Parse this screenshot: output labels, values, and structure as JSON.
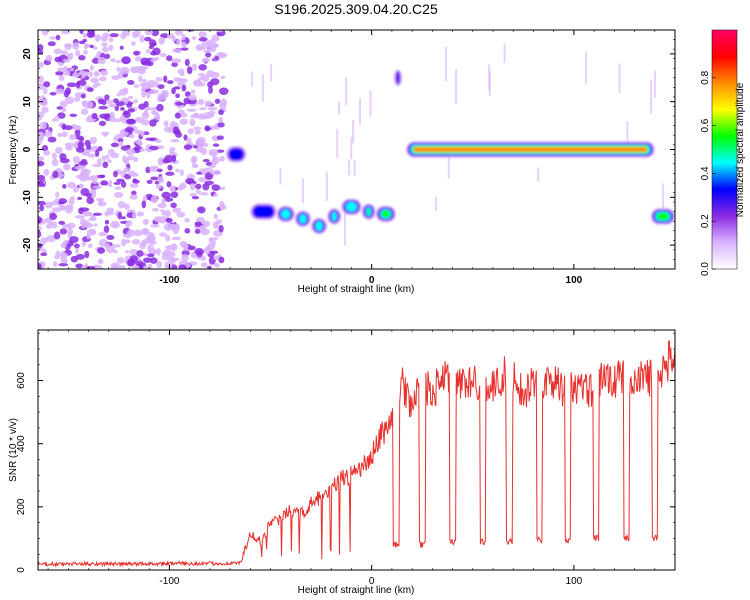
{
  "figure_title": "S196.2025.309.04.20.C25",
  "chart_data": [
    {
      "type": "heatmap",
      "title": "S196.2025.309.04.20.C25",
      "xlabel": "Height of straight line (km)",
      "ylabel": "Frequency (Hz)",
      "xlim": [
        -165,
        150
      ],
      "ylim": [
        -25,
        25
      ],
      "x_ticks": [
        -100,
        0,
        100
      ],
      "y_ticks": [
        -20,
        -10,
        0,
        10,
        20
      ],
      "colorbar": {
        "label": "Normalized spectral amplitude",
        "range": [
          0,
          1
        ],
        "ticks": [
          0.0,
          0.2,
          0.4,
          0.6,
          0.8
        ],
        "colors": [
          "#ffffff",
          "#d9b3ff",
          "#8a2be2",
          "#0000ff",
          "#00ffff",
          "#00ff00",
          "#ffff00",
          "#ff8c00",
          "#ff0000",
          "#ff0066"
        ]
      },
      "noise_region_x": [
        -165,
        -73
      ],
      "ridge_segments": [
        {
          "x": [
            -72,
            -62
          ],
          "freq": -1,
          "amplitude": 0.35
        },
        {
          "x": [
            -60,
            -47
          ],
          "freq": -13,
          "amplitude": 0.4
        },
        {
          "x": [
            -47,
            -38
          ],
          "freq": -13.5,
          "amplitude": 0.45
        },
        {
          "x": [
            -38,
            -30
          ],
          "freq": -14.5,
          "amplitude": 0.5
        },
        {
          "x": [
            -30,
            -22
          ],
          "freq": -16,
          "amplitude": 0.55
        },
        {
          "x": [
            -22,
            -15
          ],
          "freq": -14,
          "amplitude": 0.5
        },
        {
          "x": [
            -15,
            -5
          ],
          "freq": -12,
          "amplitude": 0.55
        },
        {
          "x": [
            -5,
            2
          ],
          "freq": -13,
          "amplitude": 0.6
        },
        {
          "x": [
            2,
            12
          ],
          "freq": -13.5,
          "amplitude": 0.65
        },
        {
          "x": [
            11,
            15
          ],
          "freq": 15,
          "amplitude": 0.35
        },
        {
          "x": [
            17,
            140
          ],
          "freq": 0,
          "amplitude": 0.85
        },
        {
          "x": [
            138,
            150
          ],
          "freq": -14,
          "amplitude": 0.7
        }
      ]
    },
    {
      "type": "line",
      "xlabel": "Height of straight line (km)",
      "ylabel": "SNR (10 * v/v)",
      "xlim": [
        -165,
        150
      ],
      "ylim": [
        0,
        760
      ],
      "x_ticks": [
        -100,
        0,
        100
      ],
      "y_ticks": [
        0,
        200,
        400,
        600
      ],
      "line_color": "#e8312e",
      "series": [
        {
          "name": "SNR",
          "x": [
            -165,
            -140,
            -120,
            -100,
            -80,
            -65,
            -60,
            -55,
            -50,
            -45,
            -40,
            -35,
            -30,
            -25,
            -20,
            -15,
            -10,
            -5,
            0,
            5,
            10,
            15,
            20,
            25,
            30,
            35,
            40,
            45,
            50,
            55,
            60,
            65,
            70,
            75,
            80,
            85,
            90,
            95,
            100,
            105,
            110,
            115,
            120,
            125,
            130,
            135,
            140,
            145,
            150
          ],
          "values": [
            18,
            20,
            19,
            21,
            20,
            22,
            110,
            90,
            150,
            160,
            190,
            175,
            210,
            230,
            250,
            290,
            300,
            320,
            360,
            430,
            480,
            590,
            520,
            590,
            560,
            610,
            580,
            600,
            590,
            600,
            570,
            620,
            620,
            560,
            600,
            590,
            600,
            570,
            580,
            570,
            570,
            620,
            600,
            610,
            580,
            620,
            600,
            640,
            700
          ]
        }
      ],
      "dropouts": [
        {
          "center": 12,
          "width": 3,
          "level": 80
        },
        {
          "center": 25,
          "width": 3,
          "level": 80
        },
        {
          "center": 40,
          "width": 3,
          "level": 90
        },
        {
          "center": 55,
          "width": 3,
          "level": 90
        },
        {
          "center": 68,
          "width": 3,
          "level": 90
        },
        {
          "center": 83,
          "width": 3,
          "level": 95
        },
        {
          "center": 97,
          "width": 3,
          "level": 95
        },
        {
          "center": 111,
          "width": 3,
          "level": 100
        },
        {
          "center": 126,
          "width": 3,
          "level": 100
        },
        {
          "center": 140,
          "width": 3,
          "level": 100
        }
      ]
    }
  ]
}
